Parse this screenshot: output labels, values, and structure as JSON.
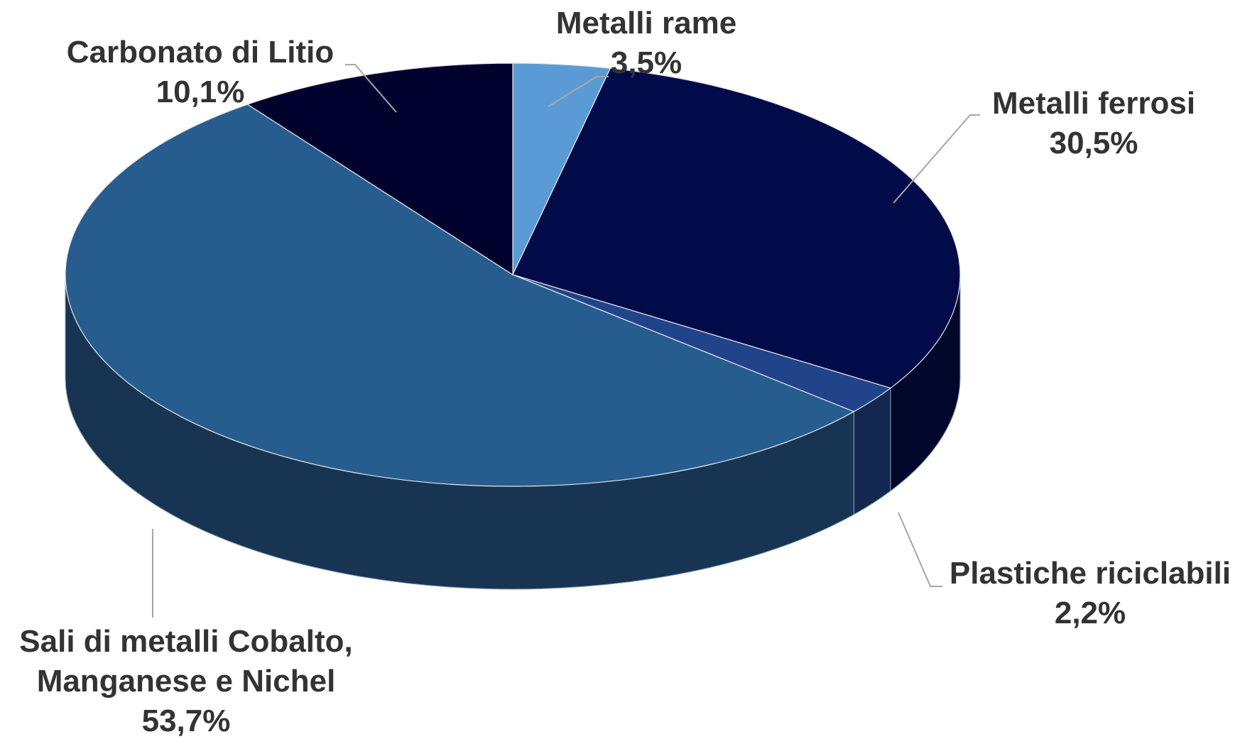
{
  "chart_data": {
    "type": "pie",
    "title": "",
    "legend": "none",
    "slices": [
      {
        "label": "Metalli rame",
        "value": 3.5,
        "display": "3,5%",
        "color": "#5b9bd5"
      },
      {
        "label": "Metalli ferrosi",
        "value": 30.5,
        "display": "30,5%",
        "color": "#020b4a"
      },
      {
        "label": "Plastiche riciclabili",
        "value": 2.2,
        "display": "2,2%",
        "color": "#21438a"
      },
      {
        "label": "Sali di metalli Cobalto, Manganese e Nichel",
        "value": 53.7,
        "display": "53,7%",
        "color": "#275c8f"
      },
      {
        "label": "Carbonato di Litio",
        "value": 10.1,
        "display": "10,1%",
        "color": "#00022e"
      }
    ]
  }
}
